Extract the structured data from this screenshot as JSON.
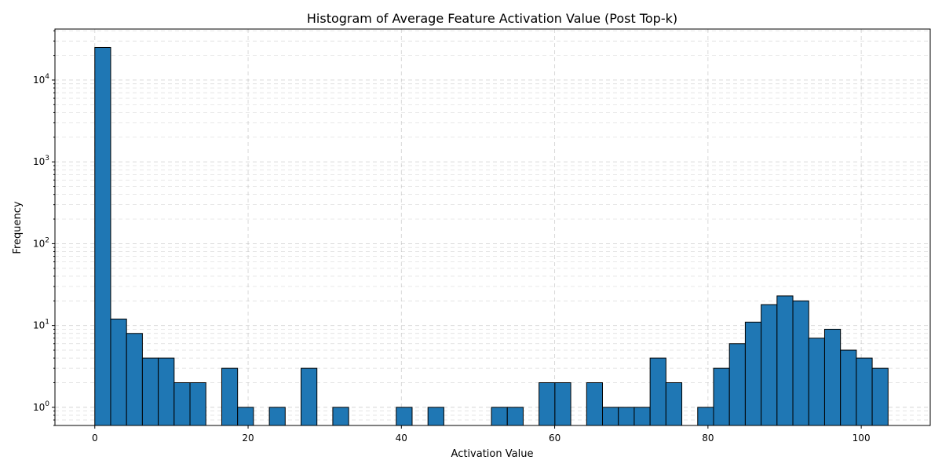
{
  "chart_data": {
    "type": "bar",
    "title": "Histogram of Average Feature Activation Value (Post Top-k)",
    "xlabel": "Activation Value",
    "ylabel": "Frequency",
    "yscale": "log",
    "grid": true,
    "xlim": [
      -5.2,
      109
    ],
    "ylim": [
      0.6,
      42000
    ],
    "bar_color": "#1f77b4",
    "edge_color": "#000000",
    "x_ticks": [
      0,
      20,
      40,
      60,
      80,
      100
    ],
    "y_ticks": [
      {
        "value": 1,
        "base": "10",
        "exp": "0"
      },
      {
        "value": 10,
        "base": "10",
        "exp": "1"
      },
      {
        "value": 100,
        "base": "10",
        "exp": "2"
      },
      {
        "value": 1000,
        "base": "10",
        "exp": "3"
      },
      {
        "value": 10000,
        "base": "10",
        "exp": "4"
      }
    ],
    "bin_edges": [
      0,
      2.07,
      4.14,
      6.21,
      8.28,
      10.35,
      12.42,
      14.49,
      16.56,
      18.63,
      20.7,
      22.77,
      24.84,
      26.91,
      28.98,
      31.05,
      33.12,
      35.19,
      37.26,
      39.33,
      41.4,
      43.47,
      45.54,
      47.61,
      49.68,
      51.75,
      53.82,
      55.89,
      57.96,
      60.03,
      62.1,
      64.17,
      66.24,
      68.31,
      70.38,
      72.45,
      74.52,
      76.59,
      78.66,
      80.73,
      82.8,
      84.87,
      86.94,
      89.01,
      91.08,
      93.15,
      95.22,
      97.29,
      99.36,
      101.43,
      103.5
    ],
    "counts": [
      25000,
      12,
      8,
      4,
      4,
      2,
      2,
      0,
      3,
      1,
      0,
      1,
      0,
      3,
      0,
      1,
      0,
      0,
      0,
      1,
      0,
      1,
      0,
      0,
      0,
      1,
      1,
      0,
      2,
      2,
      0,
      2,
      1,
      1,
      1,
      4,
      2,
      0,
      1,
      3,
      6,
      11,
      18,
      23,
      20,
      7,
      9,
      5,
      4,
      3
    ]
  }
}
